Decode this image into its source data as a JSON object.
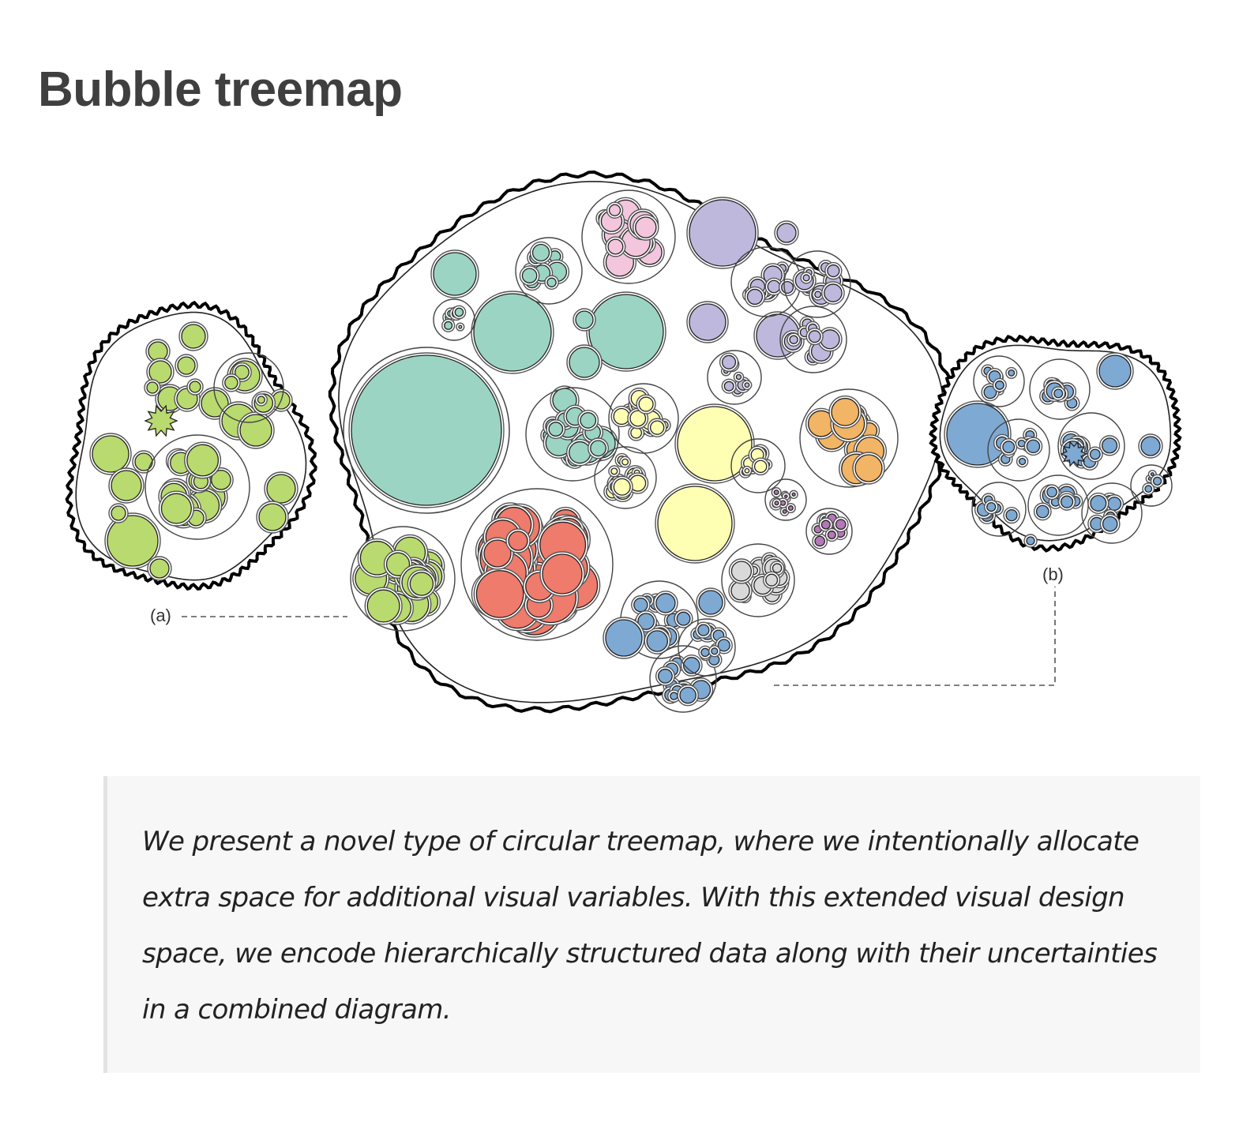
{
  "title": "Bubble treemap",
  "figure": {
    "label_a": "(a)",
    "label_b": "(b)",
    "colors": {
      "green": "#b9da6f",
      "teal": "#9bd4c3",
      "lavender": "#bdb8dc",
      "pink": "#f3c6dd",
      "yellow": "#ffffb3",
      "orange": "#f2b465",
      "purple": "#b477b8",
      "red": "#ee7b6b",
      "gray": "#d9d9d9",
      "blue": "#7ea9d3"
    }
  },
  "quote": {
    "text": "We present a novel type of circular treemap, where we intentionally allocate extra space for additional visual variables. With this extended visual design space, we encode hierarchically structured data along with their uncertainties in a combined diagram."
  }
}
